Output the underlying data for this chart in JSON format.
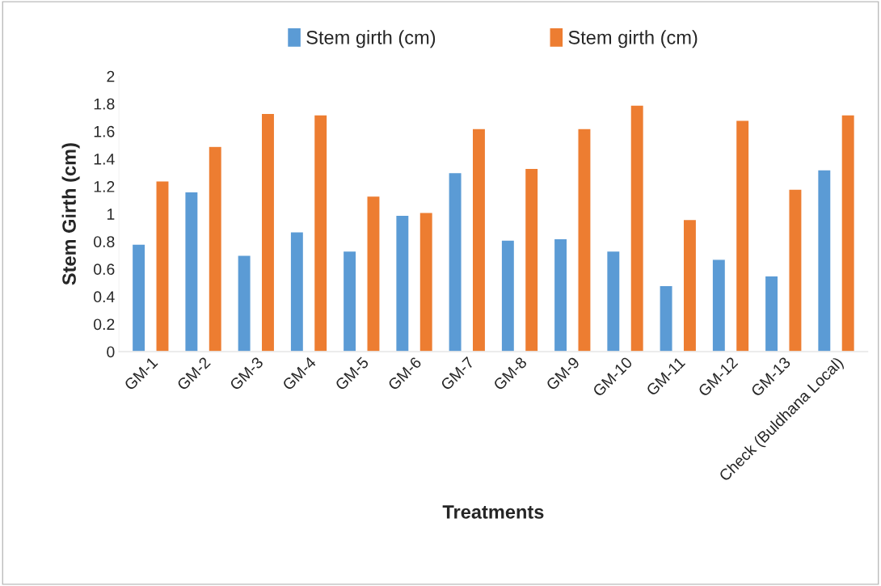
{
  "chart_data": {
    "type": "bar",
    "xlabel": "Treatments",
    "ylabel": "Stem Girth (cm)",
    "categories": [
      "GM-1",
      "GM-2",
      "GM-3",
      "GM-4",
      "GM-5",
      "GM-6",
      "GM-7",
      "GM-8",
      "GM-9",
      "GM-10",
      "GM-11",
      "GM-12",
      "GM-13",
      "Check (Buldhana Local)"
    ],
    "series": [
      {
        "name": "Stem girth (cm)",
        "color": "#5b9bd5",
        "values": [
          0.78,
          1.16,
          0.7,
          0.87,
          0.73,
          0.99,
          1.3,
          0.81,
          0.82,
          0.73,
          0.48,
          0.67,
          0.55,
          1.32
        ]
      },
      {
        "name": "Stem girth (cm)",
        "color": "#ed7d31",
        "values": [
          1.24,
          1.49,
          1.73,
          1.72,
          1.13,
          1.01,
          1.62,
          1.33,
          1.62,
          1.79,
          0.96,
          1.68,
          1.18,
          1.72
        ]
      }
    ],
    "ylim": [
      0,
      2
    ],
    "yticks": [
      0,
      0.2,
      0.4,
      0.6,
      0.8,
      1,
      1.2,
      1.4,
      1.6,
      1.8,
      2
    ],
    "grid": false,
    "legend": "top"
  }
}
